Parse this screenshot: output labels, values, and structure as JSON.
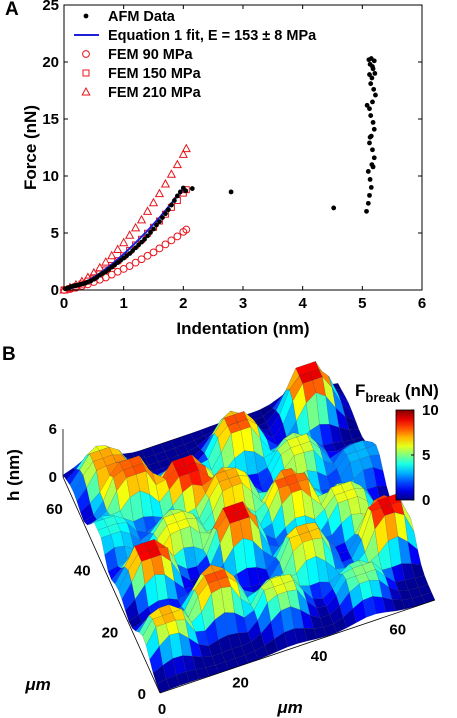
{
  "panels": {
    "a": "A",
    "b": "B"
  },
  "chart_data": [
    {
      "type": "scatter",
      "xlabel": "Indentation (nm)",
      "ylabel": "Force (nN)",
      "xlim": [
        0,
        6
      ],
      "ylim": [
        0,
        25
      ],
      "xticks": [
        0,
        1,
        2,
        3,
        4,
        5,
        6
      ],
      "yticks": [
        0,
        5,
        10,
        15,
        20,
        25
      ],
      "legend_position": "top-left",
      "series": [
        {
          "name": "AFM Data",
          "marker": "dot",
          "color": "#000000",
          "x": [
            0.02,
            0.05,
            0.08,
            0.12,
            0.16,
            0.2,
            0.24,
            0.28,
            0.32,
            0.36,
            0.4,
            0.45,
            0.5,
            0.55,
            0.6,
            0.65,
            0.7,
            0.75,
            0.8,
            0.85,
            0.9,
            0.95,
            1.0,
            1.05,
            1.1,
            1.15,
            1.2,
            1.25,
            1.3,
            1.35,
            1.4,
            1.45,
            1.5,
            1.55,
            1.6,
            1.65,
            1.7,
            1.75,
            1.8,
            1.85,
            1.9,
            1.95,
            2.0,
            2.04,
            2.15,
            2.8,
            4.52,
            5.07,
            5.1,
            5.12,
            5.15,
            5.13,
            5.1,
            5.16,
            5.2,
            5.17,
            5.12,
            5.15,
            5.2,
            5.18,
            5.14,
            5.12,
            5.17,
            5.22,
            5.19,
            5.14,
            5.16,
            5.21,
            5.18,
            5.13,
            5.11,
            5.15,
            5.2,
            5.17,
            5.12,
            5.08,
            5.13,
            5.18
          ],
          "y": [
            0.1,
            0.15,
            0.2,
            0.3,
            0.35,
            0.4,
            0.45,
            0.5,
            0.55,
            0.6,
            0.7,
            0.8,
            0.95,
            1.1,
            1.3,
            1.45,
            1.6,
            1.8,
            2.0,
            2.2,
            2.4,
            2.6,
            2.8,
            3.0,
            3.2,
            3.45,
            3.7,
            3.95,
            4.2,
            4.45,
            4.75,
            5.05,
            5.35,
            5.7,
            6.0,
            6.35,
            6.7,
            7.05,
            7.45,
            7.85,
            8.25,
            8.6,
            8.95,
            8.7,
            8.9,
            8.6,
            7.2,
            6.9,
            7.6,
            8.3,
            9.0,
            9.7,
            10.4,
            11.0,
            11.6,
            12.3,
            12.9,
            13.5,
            14.1,
            14.7,
            15.3,
            15.9,
            16.5,
            17.1,
            17.6,
            18.1,
            18.6,
            19.0,
            19.4,
            19.8,
            20.2,
            20.3,
            20.1,
            19.6,
            18.9,
            16.2,
            13.4,
            10.8
          ]
        },
        {
          "name": "Equation 1 fit, E = 153 ± 8 MPa",
          "marker": "line",
          "color": "#1f1fd6",
          "x": [
            0,
            0.2,
            0.4,
            0.6,
            0.8,
            1.0,
            1.2,
            1.4,
            1.6,
            1.8,
            2.0
          ],
          "y": [
            0,
            0.28,
            0.8,
            1.45,
            2.25,
            3.15,
            4.15,
            5.2,
            6.35,
            7.6,
            8.9
          ]
        },
        {
          "name": "FEM 90 MPa",
          "marker": "circle",
          "color": "#e8141c",
          "x": [
            0,
            0.1,
            0.2,
            0.3,
            0.4,
            0.5,
            0.6,
            0.7,
            0.8,
            0.9,
            1.0,
            1.1,
            1.2,
            1.3,
            1.4,
            1.5,
            1.6,
            1.7,
            1.8,
            1.9,
            2.0,
            2.05
          ],
          "y": [
            0,
            0.08,
            0.2,
            0.35,
            0.5,
            0.7,
            0.9,
            1.1,
            1.35,
            1.6,
            1.85,
            2.1,
            2.4,
            2.7,
            3.0,
            3.3,
            3.65,
            4.0,
            4.35,
            4.7,
            5.1,
            5.3
          ]
        },
        {
          "name": "FEM 150 MPa",
          "marker": "square",
          "color": "#e8141c",
          "x": [
            0,
            0.1,
            0.2,
            0.3,
            0.4,
            0.5,
            0.6,
            0.7,
            0.8,
            0.9,
            1.0,
            1.1,
            1.2,
            1.3,
            1.4,
            1.5,
            1.6,
            1.7,
            1.8,
            1.9,
            2.0,
            2.05
          ],
          "y": [
            0,
            0.12,
            0.3,
            0.52,
            0.78,
            1.07,
            1.4,
            1.76,
            2.15,
            2.57,
            3.0,
            3.47,
            3.95,
            4.45,
            4.98,
            5.5,
            6.05,
            6.65,
            7.25,
            7.85,
            8.5,
            8.8
          ]
        },
        {
          "name": "FEM 210 MPa",
          "marker": "triangle",
          "color": "#e8141c",
          "x": [
            0,
            0.1,
            0.2,
            0.3,
            0.4,
            0.5,
            0.6,
            0.7,
            0.8,
            0.9,
            1.0,
            1.1,
            1.2,
            1.3,
            1.4,
            1.5,
            1.6,
            1.7,
            1.8,
            1.9,
            2.0,
            2.05
          ],
          "y": [
            0,
            0.2,
            0.45,
            0.75,
            1.1,
            1.5,
            1.95,
            2.45,
            3.0,
            3.55,
            4.15,
            4.8,
            5.45,
            6.15,
            6.9,
            7.65,
            8.45,
            9.3,
            10.15,
            11.0,
            11.9,
            12.4
          ]
        }
      ]
    },
    {
      "type": "heatmap",
      "zlabel": "h (nm)",
      "xlabel": "μm",
      "ylabel": "μm",
      "xticks": [
        0,
        20,
        40,
        60
      ],
      "yticks": [
        0,
        20,
        40,
        60
      ],
      "zticks": [
        0,
        6
      ],
      "colorbar": {
        "label_main": "F",
        "label_sub": "break",
        "label_unit": " (nN)",
        "ticks": [
          0,
          5,
          10
        ]
      },
      "grid_range_um": [
        0,
        70
      ],
      "features": [
        {
          "x": 12,
          "y": 55,
          "h": 5,
          "f": 8
        },
        {
          "x": 8,
          "y": 63,
          "h": 4,
          "f": 7
        },
        {
          "x": 25,
          "y": 52,
          "h": 4,
          "f": 9
        },
        {
          "x": 40,
          "y": 58,
          "h": 5,
          "f": 8
        },
        {
          "x": 60,
          "y": 62,
          "h": 6,
          "f": 9
        },
        {
          "x": 52,
          "y": 48,
          "h": 4,
          "f": 6
        },
        {
          "x": 33,
          "y": 43,
          "h": 5,
          "f": 7
        },
        {
          "x": 18,
          "y": 38,
          "h": 4,
          "f": 6
        },
        {
          "x": 46,
          "y": 36,
          "h": 5,
          "f": 8
        },
        {
          "x": 30,
          "y": 30,
          "h": 6,
          "f": 9
        },
        {
          "x": 8,
          "y": 30,
          "h": 5,
          "f": 9
        },
        {
          "x": 58,
          "y": 30,
          "h": 4,
          "f": 6
        },
        {
          "x": 64,
          "y": 18,
          "h": 6,
          "f": 9
        },
        {
          "x": 44,
          "y": 20,
          "h": 5,
          "f": 7
        },
        {
          "x": 20,
          "y": 16,
          "h": 5,
          "f": 8
        },
        {
          "x": 6,
          "y": 12,
          "h": 4,
          "f": 7
        },
        {
          "x": 34,
          "y": 10,
          "h": 4,
          "f": 6
        },
        {
          "x": 54,
          "y": 8,
          "h": 3,
          "f": 5
        },
        {
          "x": 3,
          "y": 45,
          "h": 3,
          "f": 4
        },
        {
          "x": 66,
          "y": 42,
          "h": 3,
          "f": 3
        }
      ]
    }
  ]
}
